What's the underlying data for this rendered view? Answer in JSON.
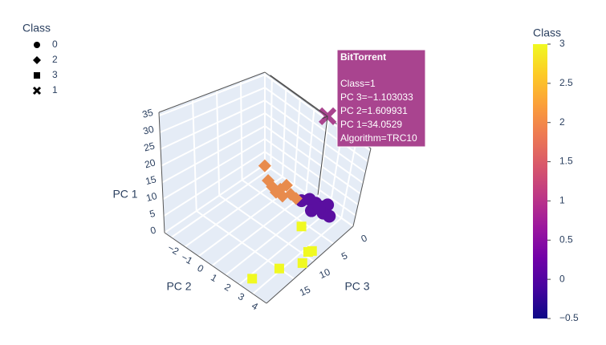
{
  "chart_data": {
    "type": "scatter3d",
    "legend_title": "Class",
    "xlabel": "PC 2",
    "ylabel": "PC 3",
    "zlabel": "PC 1",
    "xlim": [
      -2.5,
      5
    ],
    "ylim": [
      0,
      22
    ],
    "zlim": [
      0,
      36
    ],
    "xticks": [
      {
        "value": -2,
        "label": "−2"
      },
      {
        "value": -1,
        "label": "−1"
      },
      0,
      1,
      2,
      3,
      4
    ],
    "yticks": [
      0,
      5,
      10,
      15
    ],
    "zticks": [
      0,
      5,
      10,
      15,
      20,
      25,
      30,
      35
    ],
    "series": [
      {
        "name": "0",
        "symbol": "circle",
        "color": "#5a0fa0",
        "x": [
          2.77,
          3.0,
          3.45,
          3.89,
          4.0,
          3.69,
          4.27,
          4.68,
          3.88
        ],
        "y": [
          6.84,
          5.68,
          5.59,
          5.5,
          4.47,
          7.33,
          6.36,
          6.14,
          6.03
        ],
        "z": [
          12,
          12,
          12,
          12,
          12,
          12,
          12,
          12,
          12
        ]
      },
      {
        "name": "2",
        "symbol": "diamond",
        "color": "#e88b4d",
        "x": [
          1.27,
          1.6,
          1.79,
          2.06,
          2.33,
          1.94,
          2.42,
          2.71,
          2.23
        ],
        "y": [
          11.04,
          11.2,
          10.8,
          9.77,
          9.28,
          10.34,
          8.43,
          8.03,
          9.73
        ],
        "z": [
          24,
          20,
          18,
          17,
          19,
          16,
          15,
          14,
          15
        ]
      },
      {
        "name": "3",
        "symbol": "square",
        "color": "#f0f921",
        "x": [
          3.67,
          4.26,
          4.95,
          4.63,
          4.75,
          3.02
        ],
        "y": [
          21.1,
          16.4,
          12.9,
          10.45,
          9.86,
          7.1
        ],
        "z": [
          3,
          3,
          3,
          3,
          3,
          3
        ]
      },
      {
        "name": "1",
        "symbol": "x",
        "color": "#a9448f",
        "x": [
          1.609931
        ],
        "y": [
          -1.103033
        ],
        "z": [
          34.0529
        ]
      }
    ],
    "colorbar": {
      "title": "Class",
      "range": [
        -0.5,
        3
      ],
      "ticks": [
        {
          "value": -0.5,
          "label": "−0.5"
        },
        0,
        0.5,
        1,
        1.5,
        2,
        2.5,
        3
      ],
      "colorscale": [
        "#0d0887",
        "#46039f",
        "#7201a8",
        "#9c179e",
        "#bd3786",
        "#d8576b",
        "#ed7953",
        "#fb9f3a",
        "#fdca26",
        "#f0f921"
      ]
    },
    "hover": {
      "title": "BitTorrent",
      "lines": [
        "Class=1",
        "PC 3=−1.103033",
        "PC 2=1.609931",
        "PC 1=34.0529",
        "Algorithm=TRC10"
      ]
    }
  }
}
